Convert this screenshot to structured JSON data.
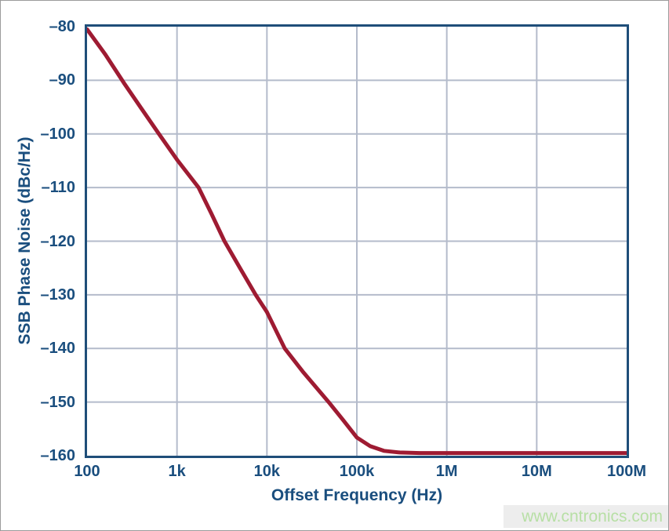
{
  "watermark": {
    "text": "www.cntronics.com",
    "text_color": "#b7dfa5",
    "band_color": "#ededed"
  },
  "chart_data": {
    "type": "line",
    "title": "",
    "xlabel": "Offset Frequency (Hz)",
    "ylabel": "SSB Phase Noise (dBc/Hz)",
    "x_scale": "log",
    "xlim": [
      100,
      100000000
    ],
    "ylim": [
      -160,
      -80
    ],
    "grid": true,
    "legend": "none",
    "x_ticks": [
      {
        "value": 100,
        "label": "100"
      },
      {
        "value": 1000,
        "label": "1k"
      },
      {
        "value": 10000,
        "label": "10k"
      },
      {
        "value": 100000,
        "label": "100k"
      },
      {
        "value": 1000000,
        "label": "1M"
      },
      {
        "value": 10000000,
        "label": "10M"
      },
      {
        "value": 100000000,
        "label": "100M"
      }
    ],
    "y_ticks": [
      {
        "value": -80,
        "label": "–80"
      },
      {
        "value": -90,
        "label": "–90"
      },
      {
        "value": -100,
        "label": "–100"
      },
      {
        "value": -110,
        "label": "–110"
      },
      {
        "value": -120,
        "label": "–120"
      },
      {
        "value": -130,
        "label": "–130"
      },
      {
        "value": -140,
        "label": "–140"
      },
      {
        "value": -150,
        "label": "–150"
      },
      {
        "value": -160,
        "label": "–160"
      }
    ],
    "series": [
      {
        "name": "SSB phase noise curve",
        "color": "#9e1b32",
        "line_width": 5,
        "points": [
          [
            100,
            -80.5
          ],
          [
            160,
            -85.2
          ],
          [
            257,
            -90.5
          ],
          [
            400,
            -95.2
          ],
          [
            630,
            -100
          ],
          [
            1000,
            -104.8
          ],
          [
            1740,
            -110
          ],
          [
            2400,
            -114.8
          ],
          [
            3370,
            -120
          ],
          [
            5100,
            -125.2
          ],
          [
            7500,
            -130
          ],
          [
            10000,
            -133.2
          ],
          [
            15800,
            -140
          ],
          [
            25000,
            -144.3
          ],
          [
            48500,
            -150
          ],
          [
            70000,
            -153.3
          ],
          [
            100000,
            -156.6
          ],
          [
            140000,
            -158.2
          ],
          [
            200000,
            -159.1
          ],
          [
            300000,
            -159.4
          ],
          [
            500000,
            -159.5
          ],
          [
            1000000,
            -159.5
          ],
          [
            10000000,
            -159.5
          ],
          [
            100000000,
            -159.5
          ]
        ]
      }
    ],
    "colors": {
      "axis_border": "#1f4e79",
      "grid": "#b4bbcb",
      "tick_label": "#1a4e7e",
      "axis_title": "#1a4e7e",
      "plot_background": "#ffffff"
    }
  }
}
